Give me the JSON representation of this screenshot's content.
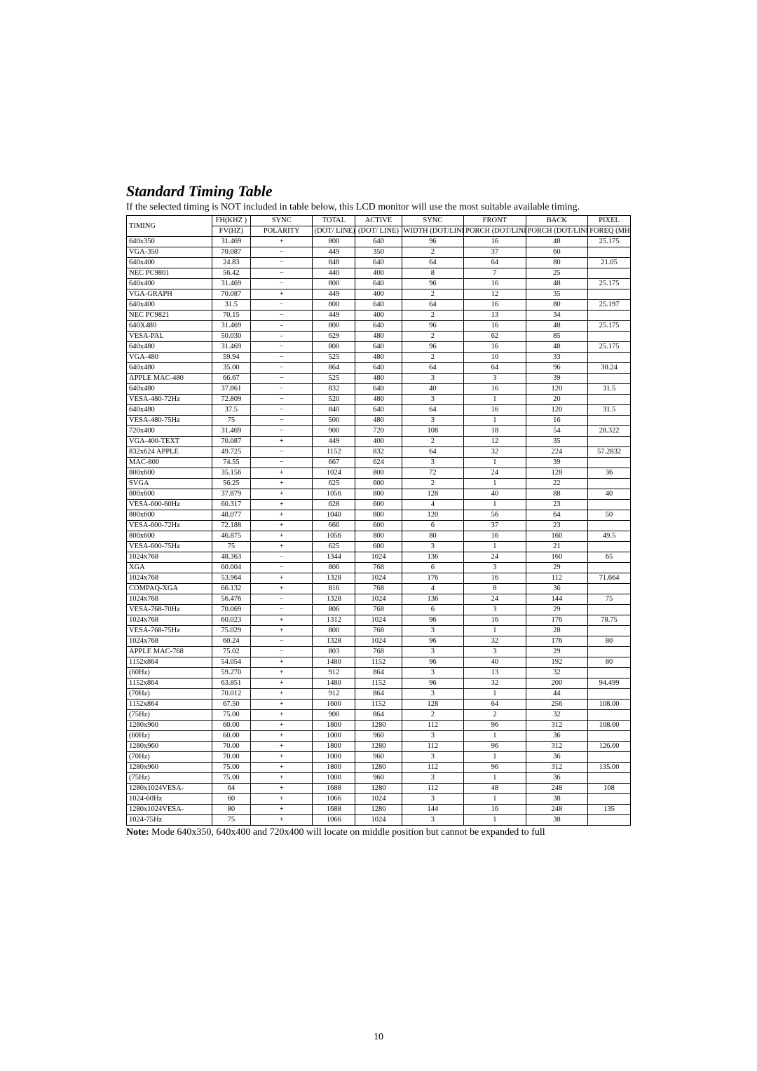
{
  "title": "Standard Timing Table",
  "subtitle": "If the selected timing is NOT included in table below, this LCD monitor will use the most suitable available timing.",
  "headers": {
    "r1": [
      "TIMING",
      "FH(KHZ )",
      "SYNC",
      "TOTAL",
      "ACTIVE",
      "SYNC",
      "FRONT",
      "BACK",
      "PIXEL"
    ],
    "r2": [
      "",
      "FV(HZ)",
      "POLARITY",
      "(DOT/ LINE)",
      "(DOT/ LINE)",
      "WIDTH (DOT/LINE)",
      "PORCH (DOT/LINE)",
      "PORCH (DOT/LINE)",
      "FOREQ (MHZ)"
    ]
  },
  "rows": [
    [
      "640x350",
      "31.469",
      "+",
      "800",
      "640",
      "96",
      "16",
      "48",
      "25.175"
    ],
    [
      "VGA-350",
      "70.087",
      "−",
      "449",
      "350",
      "2",
      "37",
      "60",
      ""
    ],
    [
      "640x400",
      "24.83",
      "−",
      "848",
      "640",
      "64",
      "64",
      "80",
      "21.05"
    ],
    [
      "NEC PC9801",
      "56.42",
      "−",
      "440",
      "400",
      "8",
      "7",
      "25",
      ""
    ],
    [
      "640x400",
      "31.469",
      "−",
      "800",
      "640",
      "96",
      "16",
      "48",
      "25.175"
    ],
    [
      "VGA-GRAPH",
      "70.087",
      "+",
      "449",
      "400",
      "2",
      "12",
      "35",
      ""
    ],
    [
      "640x400",
      "31.5",
      "−",
      "800",
      "640",
      "64",
      "16",
      "80",
      "25.197"
    ],
    [
      "NEC PC9821",
      "70.15",
      "−",
      "449",
      "400",
      "2",
      "13",
      "34",
      ""
    ],
    [
      "640X480",
      "31.469",
      "-",
      "800",
      "640",
      "96",
      "16",
      "48",
      "25.175"
    ],
    [
      "VESA-PAL",
      "50.030",
      "-",
      "629",
      "480",
      "2",
      "62",
      "85",
      ""
    ],
    [
      "640x480",
      "31.469",
      "−",
      "800",
      "640",
      "96",
      "16",
      "48",
      "25.175"
    ],
    [
      "VGA-480",
      "59.94",
      "−",
      "525",
      "480",
      "2",
      "10",
      "33",
      ""
    ],
    [
      "640x480",
      "35.00",
      "−",
      "864",
      "640",
      "64",
      "64",
      "96",
      "30.24"
    ],
    [
      "APPLE MAC-480",
      "66.67",
      "−",
      "525",
      "480",
      "3",
      "3",
      "39",
      ""
    ],
    [
      "640x480",
      "37.861",
      "−",
      "832",
      "640",
      "40",
      "16",
      "120",
      "31.5"
    ],
    [
      "VESA-480-72Hz",
      "72.809",
      "−",
      "520",
      "480",
      "3",
      "1",
      "20",
      ""
    ],
    [
      "640x480",
      "37.5",
      "−",
      "840",
      "640",
      "64",
      "16",
      "120",
      "31.5"
    ],
    [
      "VESA-480-75Hz",
      "75",
      "−",
      "500",
      "480",
      "3",
      "1",
      "16",
      ""
    ],
    [
      "720x400",
      "31.469",
      "−",
      "900",
      "720",
      "108",
      "18",
      "54",
      "28.322"
    ],
    [
      "VGA-400-TEXT",
      "70.087",
      "+",
      "449",
      "400",
      "2",
      "12",
      "35",
      ""
    ],
    [
      "832x624 APPLE",
      "49.725",
      "−",
      "1152",
      "832",
      "64",
      "32",
      "224",
      "57.2832"
    ],
    [
      "MAC-800",
      "74.55",
      "−",
      "667",
      "624",
      "3",
      "1",
      "39",
      ""
    ],
    [
      "800x600",
      "35.156",
      "+",
      "1024",
      "800",
      "72",
      "24",
      "128",
      "36"
    ],
    [
      "SVGA",
      "56.25",
      "+",
      "625",
      "600",
      "2",
      "1",
      "22",
      ""
    ],
    [
      "800x600",
      "37.879",
      "+",
      "1056",
      "800",
      "128",
      "40",
      "88",
      "40"
    ],
    [
      "VESA-600-60Hz",
      "60.317",
      "+",
      "628",
      "600",
      "4",
      "1",
      "23",
      ""
    ],
    [
      "800x600",
      "48.077",
      "+",
      "1040",
      "800",
      "120",
      "56",
      "64",
      "50"
    ],
    [
      "VESA-600-72Hz",
      "72.188",
      "+",
      "666",
      "600",
      "6",
      "37",
      "23",
      ""
    ],
    [
      "800x600",
      "46.875",
      "+",
      "1056",
      "800",
      "80",
      "16",
      "160",
      "49.5"
    ],
    [
      "VESA-600-75Hz",
      "75",
      "+",
      "625",
      "600",
      "3",
      "1",
      "21",
      ""
    ],
    [
      "1024x768",
      "48.363",
      "−",
      "1344",
      "1024",
      "136",
      "24",
      "160",
      "65"
    ],
    [
      "XGA",
      "60.004",
      "−",
      "806",
      "768",
      "6",
      "3",
      "29",
      ""
    ],
    [
      "1024x768",
      "53.964",
      "+",
      "1328",
      "1024",
      "176",
      "16",
      "112",
      "71.664"
    ],
    [
      "COMPAQ-XGA",
      "66.132",
      "+",
      "816",
      "768",
      "4",
      "8",
      "36",
      ""
    ],
    [
      "1024x768",
      "56.476",
      "−",
      "1328",
      "1024",
      "136",
      "24",
      "144",
      "75"
    ],
    [
      "VESA-768-70Hz",
      "70.069",
      "−",
      "806",
      "768",
      "6",
      "3",
      "29",
      ""
    ],
    [
      "1024x768",
      "60.023",
      "+",
      "1312",
      "1024",
      "96",
      "16",
      "176",
      "78.75"
    ],
    [
      "VESA-768-75Hz",
      "75.029",
      "+",
      "800",
      "768",
      "3",
      "1",
      "28",
      ""
    ],
    [
      "1024x768",
      "60.24",
      "−",
      "1328",
      "1024",
      "96",
      "32",
      "176",
      "80"
    ],
    [
      "APPLE MAC-768",
      "75.02",
      "−",
      "803",
      "768",
      "3",
      "3",
      "29",
      ""
    ],
    [
      "1152x864",
      "54.054",
      "+",
      "1480",
      "1152",
      "96",
      "40",
      "192",
      "80"
    ],
    [
      "(60Hz)",
      "59.270",
      "+",
      "912",
      "864",
      "3",
      "13",
      "32",
      ""
    ],
    [
      "1152x864",
      "63.851",
      "+",
      "1480",
      "1152",
      "96",
      "32",
      "200",
      "94.499"
    ],
    [
      "(70Hz)",
      "70.012",
      "+",
      "912",
      "864",
      "3",
      "1",
      "44",
      ""
    ],
    [
      "1152x864",
      "67.50",
      "+",
      "1600",
      "1152",
      "128",
      "64",
      "256",
      "108.00"
    ],
    [
      "(75Hz)",
      "75.00",
      "+",
      "900",
      "864",
      "2",
      "2",
      "32",
      ""
    ],
    [
      "1280x960",
      "60.00",
      "+",
      "1800",
      "1280",
      "112",
      "96",
      "312",
      "108.00"
    ],
    [
      "(60Hz)",
      "60.00",
      "+",
      "1000",
      "960",
      "3",
      "1",
      "36",
      ""
    ],
    [
      "1280x960",
      "70.00",
      "+",
      "1800",
      "1280",
      "112",
      "96",
      "312",
      "126.00"
    ],
    [
      "(70Hz)",
      "70.00",
      "+",
      "1000",
      "960",
      "3",
      "1",
      "36",
      ""
    ],
    [
      "1280x960",
      "75.00",
      "+",
      "1800",
      "1280",
      "112",
      "96",
      "312",
      "135.00"
    ],
    [
      "(75Hz)",
      "75.00",
      "+",
      "1000",
      "960",
      "3",
      "1",
      "36",
      ""
    ],
    [
      "1280x1024VESA-",
      "64",
      "+",
      "1688",
      "1280",
      "112",
      "48",
      "248",
      "108"
    ],
    [
      "1024-60Hz",
      "60",
      "+",
      "1066",
      "1024",
      "3",
      "1",
      "38",
      ""
    ],
    [
      "1280x1024VESA-",
      "80",
      "+",
      "1688",
      "1280",
      "144",
      "16",
      "248",
      "135"
    ],
    [
      "1024-75Hz",
      "75",
      "+",
      "1066",
      "1024",
      "3",
      "1",
      "38",
      ""
    ]
  ],
  "note_prefix": "Note:",
  "note": " Mode 640x350, 640x400 and 720x400 will locate on middle position but cannot be expanded to full",
  "pagenum": "10"
}
